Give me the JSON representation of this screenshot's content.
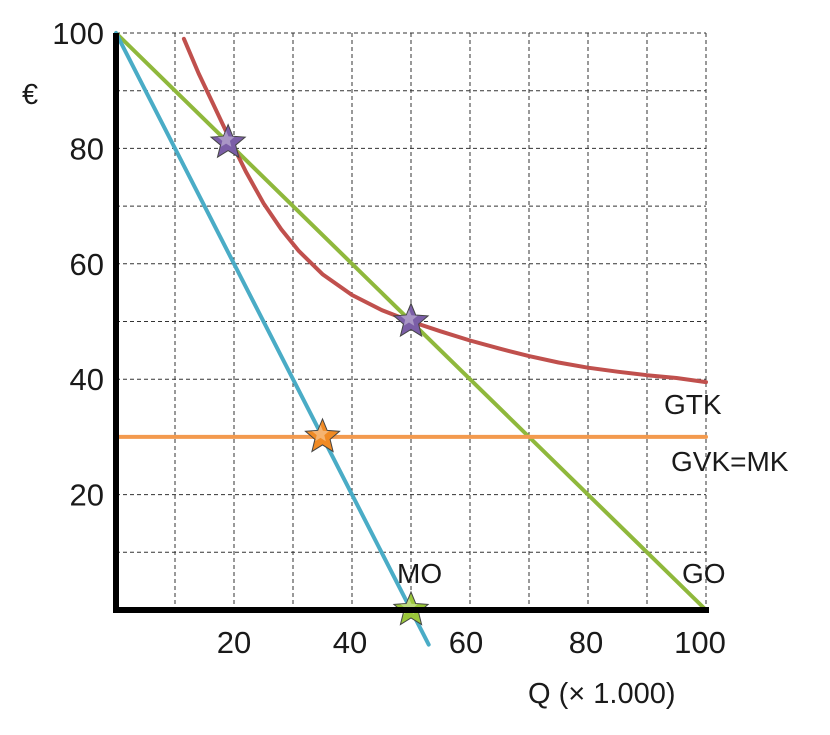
{
  "chart_data": {
    "type": "line",
    "xlabel": "Q (× 1.000)",
    "ylabel": "€",
    "xlim": [
      0,
      100
    ],
    "ylim": [
      0,
      100
    ],
    "grid": true,
    "x_ticks": [
      20,
      40,
      60,
      80,
      100
    ],
    "y_ticks": [
      20,
      40,
      60,
      80,
      100
    ],
    "series": [
      {
        "name": "GO",
        "color": "#8fb83c",
        "points": [
          [
            0,
            100
          ],
          [
            100,
            0
          ]
        ]
      },
      {
        "name": "MO",
        "color": "#4aacc6",
        "points": [
          [
            0,
            100
          ],
          [
            53,
            -6
          ]
        ]
      },
      {
        "name": "GVK=MK",
        "color": "#f39a4e",
        "points": [
          [
            0,
            30
          ],
          [
            100,
            30
          ]
        ]
      },
      {
        "name": "GTK",
        "color": "#c0504d",
        "points": [
          [
            11.5,
            99
          ],
          [
            14,
            93
          ],
          [
            16.5,
            87.6
          ],
          [
            19,
            82.2
          ],
          [
            22,
            76
          ],
          [
            25,
            70.5
          ],
          [
            28,
            66
          ],
          [
            31,
            62.2
          ],
          [
            35,
            58.2
          ],
          [
            40,
            54.6
          ],
          [
            45,
            52
          ],
          [
            50,
            50
          ],
          [
            55,
            48.3
          ],
          [
            60,
            46.7
          ],
          [
            65,
            45.3
          ],
          [
            70,
            44
          ],
          [
            75,
            42.9
          ],
          [
            80,
            42
          ],
          [
            85,
            41.3
          ],
          [
            90,
            40.7
          ],
          [
            95,
            40.2
          ],
          [
            100,
            39.5
          ]
        ]
      }
    ],
    "markers": [
      {
        "name": "GTK-GO-intersection",
        "x": 19,
        "y": 81,
        "color": "#7b5ea7"
      },
      {
        "name": "GO-GTK-intersection",
        "x": 50,
        "y": 50,
        "color": "#7b5ea7"
      },
      {
        "name": "MO-MK-intersection",
        "x": 35,
        "y": 30,
        "color": "#f08a24"
      },
      {
        "name": "MO-zero",
        "x": 50,
        "y": 0,
        "color": "#9bc83a"
      }
    ],
    "curve_labels": [
      {
        "text": "GTK",
        "series": "GTK"
      },
      {
        "text": "GVK=MK",
        "series": "GVK=MK"
      },
      {
        "text": "MO",
        "series": "MO"
      },
      {
        "text": "GO",
        "series": "GO"
      }
    ]
  }
}
